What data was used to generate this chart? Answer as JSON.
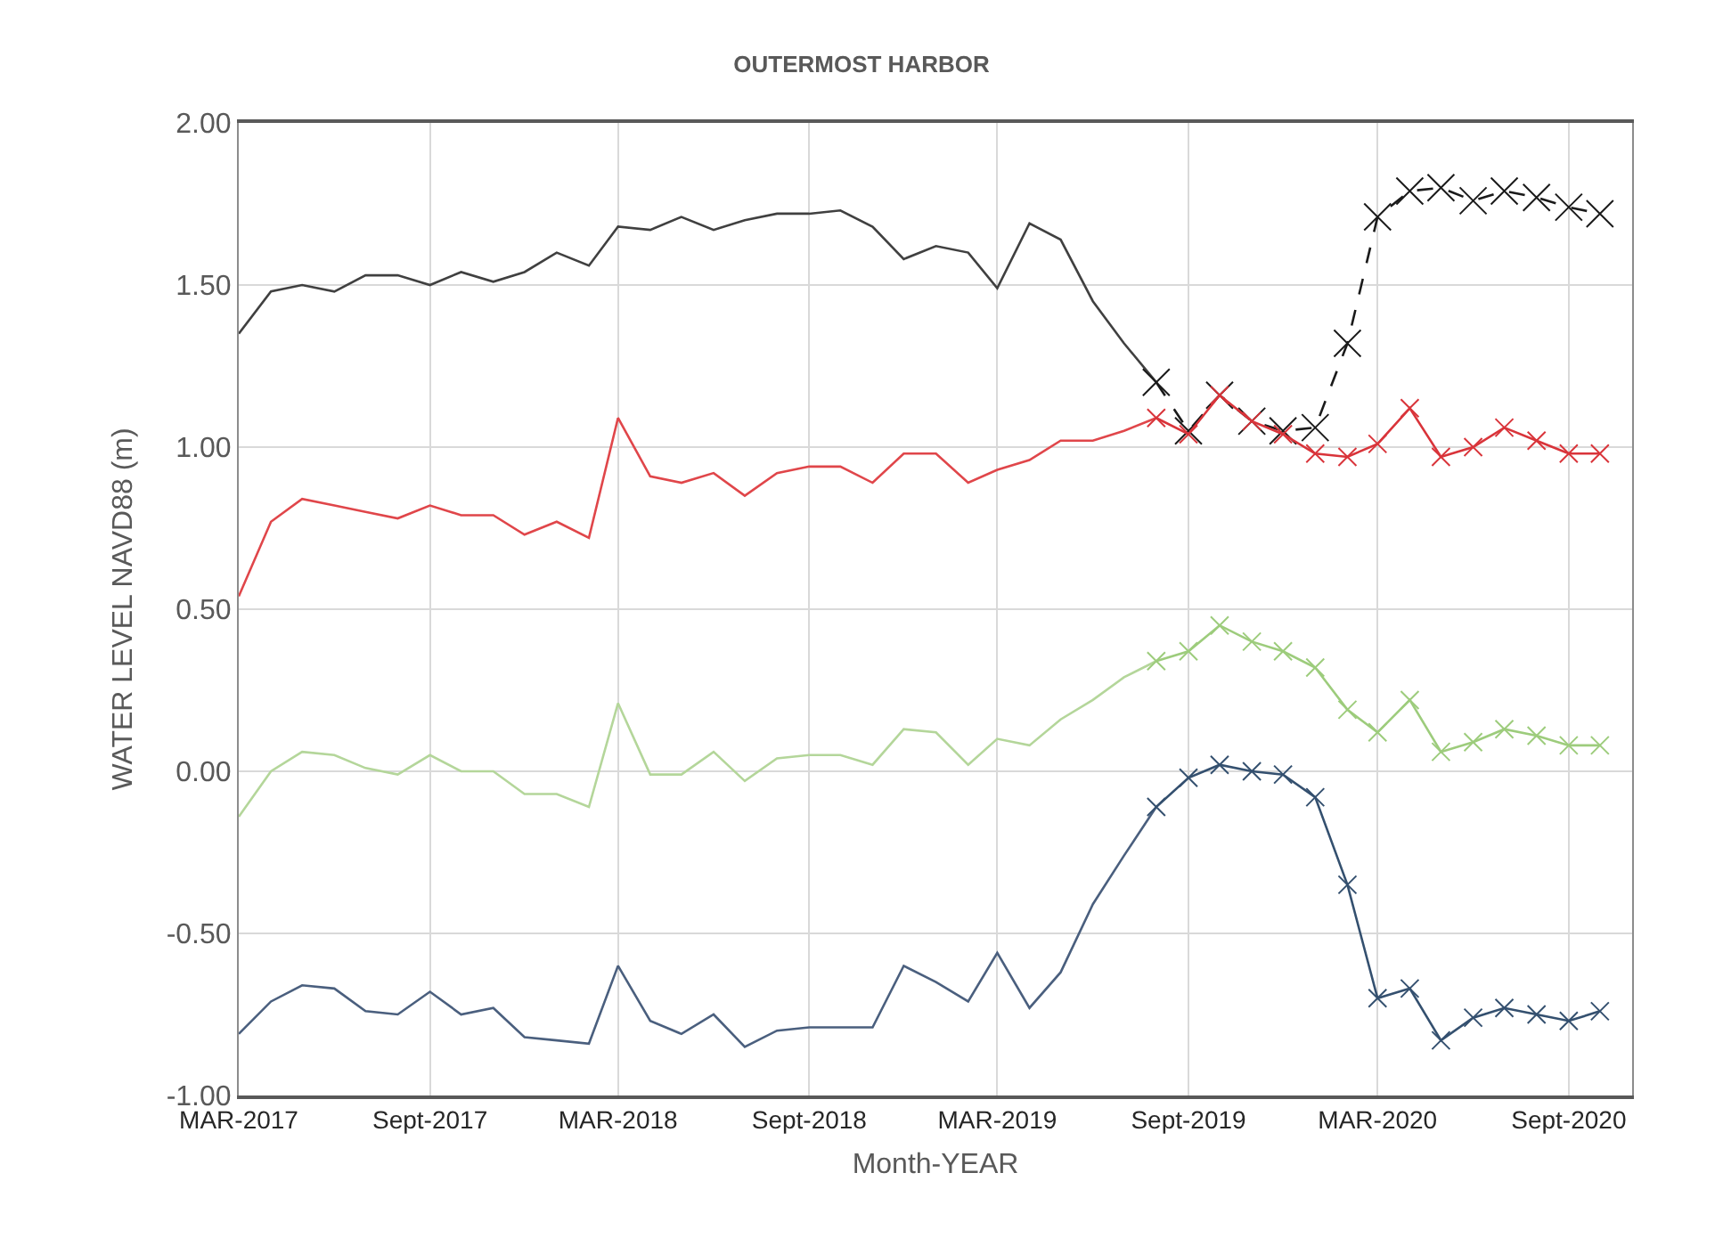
{
  "chart_data": {
    "type": "line",
    "title": "OUTERMOST HARBOR",
    "xlabel": "Month-YEAR",
    "ylabel": "WATER LEVEL NAVD88 (m)",
    "xlim": [
      "2017-03",
      "2020-11"
    ],
    "xticks": [
      {
        "value": "2017-03",
        "label": "MAR-2017"
      },
      {
        "value": "2017-09",
        "label": "Sept-2017"
      },
      {
        "value": "2018-03",
        "label": "MAR-2018"
      },
      {
        "value": "2018-09",
        "label": "Sept-2018"
      },
      {
        "value": "2019-03",
        "label": "MAR-2019"
      },
      {
        "value": "2019-09",
        "label": "Sept-2019"
      },
      {
        "value": "2020-03",
        "label": "MAR-2020"
      },
      {
        "value": "2020-09",
        "label": "Sept-2020"
      }
    ],
    "ylim": [
      -1,
      2
    ],
    "yticks": [
      {
        "value": -1,
        "label": "-1.00"
      },
      {
        "value": -0.5,
        "label": "-0.50"
      },
      {
        "value": 0,
        "label": "0.00"
      },
      {
        "value": 0.5,
        "label": "0.50"
      },
      {
        "value": 1,
        "label": "1.00"
      },
      {
        "value": 1.5,
        "label": "1.50"
      },
      {
        "value": 2,
        "label": "2.00"
      }
    ],
    "grid": true,
    "series": [
      {
        "color": "#404040",
        "marker": "none",
        "line_style": "solid",
        "x": [
          "2017-03",
          "2017-04",
          "2017-05",
          "2017-06",
          "2017-07",
          "2017-08",
          "2017-09",
          "2017-10",
          "2017-11",
          "2017-12",
          "2018-01",
          "2018-02",
          "2018-03",
          "2018-04",
          "2018-05",
          "2018-06",
          "2018-07",
          "2018-08",
          "2018-09",
          "2018-10",
          "2018-11",
          "2018-12",
          "2019-01",
          "2019-02",
          "2019-03",
          "2019-04",
          "2019-05",
          "2019-06",
          "2019-07",
          "2019-08"
        ],
        "values": [
          1.35,
          1.48,
          1.5,
          1.48,
          1.53,
          1.53,
          1.5,
          1.54,
          1.51,
          1.54,
          1.6,
          1.56,
          1.68,
          1.67,
          1.71,
          1.67,
          1.7,
          1.72,
          1.72,
          1.73,
          1.68,
          1.58,
          1.62,
          1.6,
          1.49,
          1.69,
          1.64,
          1.45,
          1.32,
          1.2
        ]
      },
      {
        "color": "#e0464a",
        "marker": "none",
        "line_style": "solid",
        "x": [
          "2017-03",
          "2017-04",
          "2017-05",
          "2017-06",
          "2017-07",
          "2017-08",
          "2017-09",
          "2017-10",
          "2017-11",
          "2017-12",
          "2018-01",
          "2018-02",
          "2018-03",
          "2018-04",
          "2018-05",
          "2018-06",
          "2018-07",
          "2018-08",
          "2018-09",
          "2018-10",
          "2018-11",
          "2018-12",
          "2019-01",
          "2019-02",
          "2019-03",
          "2019-04",
          "2019-05",
          "2019-06",
          "2019-07",
          "2019-08"
        ],
        "values": [
          0.54,
          0.77,
          0.84,
          0.82,
          0.8,
          0.78,
          0.82,
          0.79,
          0.79,
          0.73,
          0.77,
          0.72,
          1.09,
          0.91,
          0.89,
          0.92,
          0.85,
          0.92,
          0.94,
          0.94,
          0.89,
          0.98,
          0.98,
          0.89,
          0.93,
          0.96,
          1.02,
          1.02,
          1.05,
          1.09
        ]
      },
      {
        "color": "#b4d69a",
        "marker": "none",
        "line_style": "solid",
        "x": [
          "2017-03",
          "2017-04",
          "2017-05",
          "2017-06",
          "2017-07",
          "2017-08",
          "2017-09",
          "2017-10",
          "2017-11",
          "2017-12",
          "2018-01",
          "2018-02",
          "2018-03",
          "2018-04",
          "2018-05",
          "2018-06",
          "2018-07",
          "2018-08",
          "2018-09",
          "2018-10",
          "2018-11",
          "2018-12",
          "2019-01",
          "2019-02",
          "2019-03",
          "2019-04",
          "2019-05",
          "2019-06",
          "2019-07",
          "2019-08"
        ],
        "values": [
          -0.14,
          0.0,
          0.06,
          0.05,
          0.01,
          -0.01,
          0.05,
          0.0,
          0.0,
          -0.07,
          -0.07,
          -0.11,
          0.21,
          -0.01,
          -0.01,
          0.06,
          -0.03,
          0.04,
          0.05,
          0.05,
          0.02,
          0.13,
          0.12,
          0.02,
          0.1,
          0.08,
          0.16,
          0.22,
          0.29,
          0.34
        ]
      },
      {
        "color": "#4a5f7e",
        "marker": "none",
        "line_style": "solid",
        "x": [
          "2017-03",
          "2017-04",
          "2017-05",
          "2017-06",
          "2017-07",
          "2017-08",
          "2017-09",
          "2017-10",
          "2017-11",
          "2017-12",
          "2018-01",
          "2018-02",
          "2018-03",
          "2018-04",
          "2018-05",
          "2018-06",
          "2018-07",
          "2018-08",
          "2018-09",
          "2018-10",
          "2018-11",
          "2018-12",
          "2019-01",
          "2019-02",
          "2019-03",
          "2019-04",
          "2019-05",
          "2019-06",
          "2019-07",
          "2019-08"
        ],
        "values": [
          -0.81,
          -0.71,
          -0.66,
          -0.67,
          -0.74,
          -0.75,
          -0.68,
          -0.75,
          -0.73,
          -0.82,
          -0.83,
          -0.84,
          -0.6,
          -0.77,
          -0.81,
          -0.75,
          -0.85,
          -0.8,
          -0.79,
          -0.79,
          -0.79,
          -0.6,
          -0.65,
          -0.71,
          -0.56,
          -0.73,
          -0.62,
          -0.41,
          -0.26,
          -0.11
        ]
      },
      {
        "color": "#1a1a1a",
        "marker": "cross",
        "line_style": "dashed",
        "x": [
          "2019-08",
          "2019-09",
          "2019-10",
          "2019-11",
          "2019-12",
          "2020-01",
          "2020-02",
          "2020-03",
          "2020-04",
          "2020-05",
          "2020-06",
          "2020-07",
          "2020-08",
          "2020-09",
          "2020-10"
        ],
        "values": [
          1.2,
          1.05,
          1.16,
          1.08,
          1.05,
          1.06,
          1.32,
          1.71,
          1.79,
          1.8,
          1.76,
          1.79,
          1.77,
          1.74,
          1.72
        ]
      },
      {
        "color": "#d9343a",
        "marker": "cross",
        "line_style": "solid",
        "x": [
          "2019-08",
          "2019-09",
          "2019-10",
          "2019-11",
          "2019-12",
          "2020-01",
          "2020-02",
          "2020-03",
          "2020-04",
          "2020-05",
          "2020-06",
          "2020-07",
          "2020-08",
          "2020-09",
          "2020-10"
        ],
        "values": [
          1.09,
          1.04,
          1.16,
          1.08,
          1.04,
          0.98,
          0.97,
          1.01,
          1.12,
          0.97,
          1.0,
          1.06,
          1.02,
          0.98,
          0.98
        ]
      },
      {
        "color": "#9dcc7c",
        "marker": "cross",
        "line_style": "solid",
        "x": [
          "2019-08",
          "2019-09",
          "2019-10",
          "2019-11",
          "2019-12",
          "2020-01",
          "2020-02",
          "2020-03",
          "2020-04",
          "2020-05",
          "2020-06",
          "2020-07",
          "2020-08",
          "2020-09",
          "2020-10"
        ],
        "values": [
          0.34,
          0.37,
          0.45,
          0.4,
          0.37,
          0.32,
          0.19,
          0.12,
          0.22,
          0.06,
          0.09,
          0.13,
          0.11,
          0.08,
          0.08
        ]
      },
      {
        "color": "#34506f",
        "marker": "cross",
        "line_style": "solid",
        "x": [
          "2019-08",
          "2019-09",
          "2019-10",
          "2019-11",
          "2019-12",
          "2020-01",
          "2020-02",
          "2020-03",
          "2020-04",
          "2020-05",
          "2020-06",
          "2020-07",
          "2020-08",
          "2020-09",
          "2020-10"
        ],
        "values": [
          -0.11,
          -0.02,
          0.02,
          0.0,
          -0.01,
          -0.08,
          -0.35,
          -0.7,
          -0.67,
          -0.83,
          -0.76,
          -0.73,
          -0.75,
          -0.77,
          -0.74
        ]
      }
    ]
  }
}
